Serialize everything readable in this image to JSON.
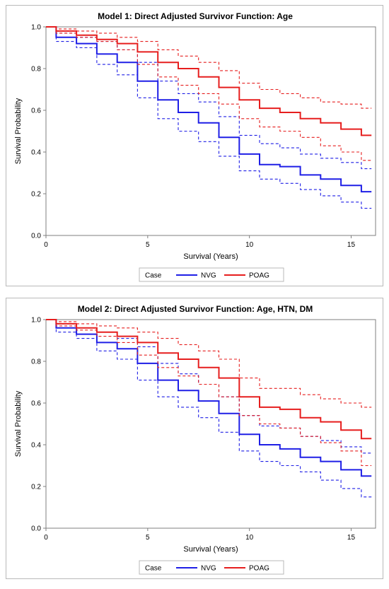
{
  "colors": {
    "NVG": "#1f1fe6",
    "POAG": "#e61e1e",
    "axis": "#7f7f7f"
  },
  "chart_data": [
    {
      "type": "line",
      "title": "Model 1: Direct Adjusted Survivor Function: Age",
      "xlabel": "Survival (Years)",
      "ylabel": "Survival Probability",
      "xlim": [
        0,
        16.2
      ],
      "ylim": [
        0,
        1.0
      ],
      "xticks": [
        "0",
        "5",
        "10",
        "15"
      ],
      "yticks": [
        "0.0",
        "0.2",
        "0.4",
        "0.6",
        "0.8",
        "1.0"
      ],
      "legend": {
        "title": "Case",
        "position": "bottom",
        "entries": [
          "NVG",
          "POAG"
        ]
      },
      "x": [
        0,
        1,
        2,
        3,
        4,
        5,
        6,
        7,
        8,
        9,
        10,
        11,
        12,
        13,
        14,
        15,
        16
      ],
      "series": [
        {
          "name": "NVG",
          "role": "estimate",
          "values": [
            1.0,
            0.95,
            0.92,
            0.87,
            0.83,
            0.74,
            0.65,
            0.59,
            0.54,
            0.47,
            0.39,
            0.34,
            0.33,
            0.29,
            0.27,
            0.24,
            0.21
          ]
        },
        {
          "name": "NVG",
          "role": "upper",
          "values": [
            1.0,
            0.97,
            0.95,
            0.93,
            0.89,
            0.83,
            0.74,
            0.68,
            0.64,
            0.57,
            0.48,
            0.44,
            0.42,
            0.39,
            0.37,
            0.35,
            0.32
          ]
        },
        {
          "name": "NVG",
          "role": "lower",
          "values": [
            1.0,
            0.93,
            0.9,
            0.82,
            0.77,
            0.66,
            0.56,
            0.5,
            0.45,
            0.38,
            0.31,
            0.27,
            0.25,
            0.22,
            0.19,
            0.16,
            0.13
          ]
        },
        {
          "name": "POAG",
          "role": "estimate",
          "values": [
            1.0,
            0.98,
            0.96,
            0.94,
            0.92,
            0.88,
            0.83,
            0.8,
            0.76,
            0.71,
            0.65,
            0.61,
            0.59,
            0.56,
            0.54,
            0.51,
            0.48
          ]
        },
        {
          "name": "POAG",
          "role": "upper",
          "values": [
            1.0,
            0.99,
            0.98,
            0.97,
            0.95,
            0.93,
            0.89,
            0.86,
            0.83,
            0.79,
            0.73,
            0.7,
            0.68,
            0.66,
            0.64,
            0.63,
            0.61
          ]
        },
        {
          "name": "POAG",
          "role": "lower",
          "values": [
            1.0,
            0.97,
            0.95,
            0.93,
            0.89,
            0.82,
            0.76,
            0.72,
            0.68,
            0.63,
            0.56,
            0.52,
            0.5,
            0.47,
            0.43,
            0.4,
            0.36
          ]
        }
      ]
    },
    {
      "type": "line",
      "title": "Model 2: Direct Adjusted Survivor Function: Age, HTN, DM",
      "xlabel": "Survival (Years)",
      "ylabel": "Survival Probability",
      "xlim": [
        0,
        16.2
      ],
      "ylim": [
        0,
        1.0
      ],
      "xticks": [
        "0",
        "5",
        "10",
        "15"
      ],
      "yticks": [
        "0.0",
        "0.2",
        "0.4",
        "0.6",
        "0.8",
        "1.0"
      ],
      "legend": {
        "title": "Case",
        "position": "bottom",
        "entries": [
          "NVG",
          "POAG"
        ]
      },
      "x": [
        0,
        1,
        2,
        3,
        4,
        5,
        6,
        7,
        8,
        9,
        10,
        11,
        12,
        13,
        14,
        15,
        16
      ],
      "series": [
        {
          "name": "NVG",
          "role": "estimate",
          "values": [
            1.0,
            0.96,
            0.93,
            0.89,
            0.86,
            0.79,
            0.71,
            0.66,
            0.61,
            0.55,
            0.45,
            0.4,
            0.38,
            0.34,
            0.32,
            0.28,
            0.25
          ]
        },
        {
          "name": "NVG",
          "role": "upper",
          "values": [
            1.0,
            0.98,
            0.96,
            0.94,
            0.91,
            0.87,
            0.79,
            0.74,
            0.69,
            0.63,
            0.54,
            0.49,
            0.48,
            0.44,
            0.42,
            0.39,
            0.36
          ]
        },
        {
          "name": "NVG",
          "role": "lower",
          "values": [
            1.0,
            0.94,
            0.91,
            0.85,
            0.81,
            0.71,
            0.63,
            0.58,
            0.53,
            0.46,
            0.37,
            0.32,
            0.3,
            0.27,
            0.23,
            0.19,
            0.15
          ]
        },
        {
          "name": "POAG",
          "role": "estimate",
          "values": [
            1.0,
            0.98,
            0.96,
            0.94,
            0.92,
            0.89,
            0.84,
            0.81,
            0.77,
            0.72,
            0.63,
            0.58,
            0.57,
            0.53,
            0.51,
            0.47,
            0.43
          ]
        },
        {
          "name": "POAG",
          "role": "upper",
          "values": [
            1.0,
            0.99,
            0.98,
            0.97,
            0.96,
            0.94,
            0.91,
            0.88,
            0.85,
            0.81,
            0.72,
            0.67,
            0.67,
            0.64,
            0.62,
            0.6,
            0.58
          ]
        },
        {
          "name": "POAG",
          "role": "lower",
          "values": [
            1.0,
            0.97,
            0.95,
            0.92,
            0.89,
            0.83,
            0.77,
            0.73,
            0.69,
            0.63,
            0.54,
            0.5,
            0.48,
            0.44,
            0.41,
            0.37,
            0.3
          ]
        }
      ]
    }
  ]
}
